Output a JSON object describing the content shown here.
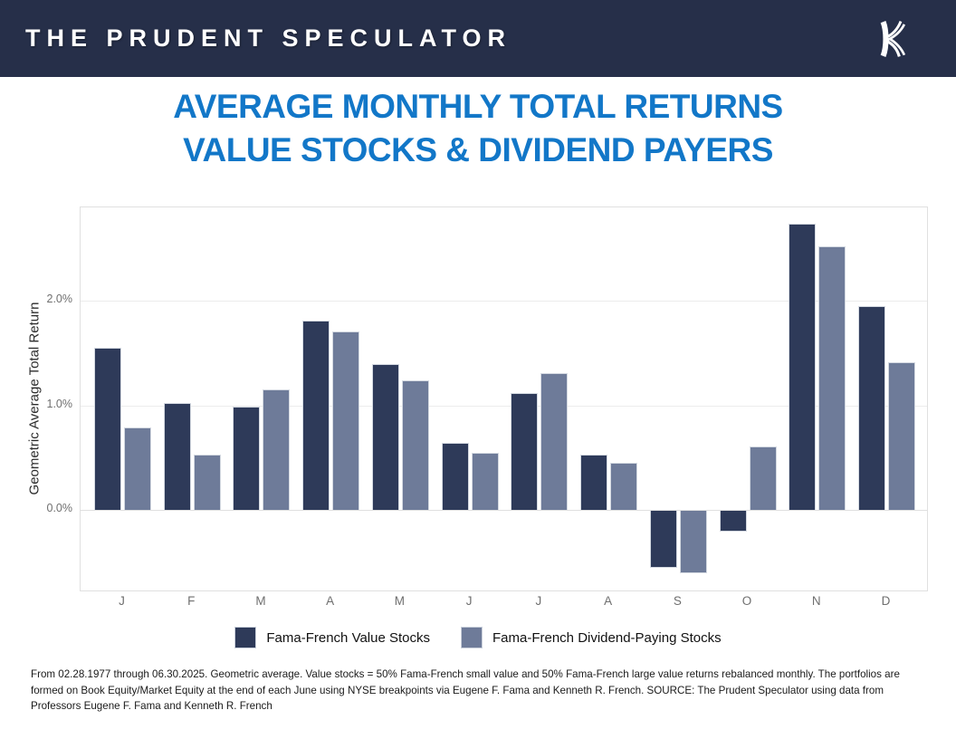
{
  "header": {
    "brand": "THE PRUDENT SPECULATOR",
    "logo_icon": "kovitz-k-logo",
    "background_color": "#262f49"
  },
  "title": {
    "line1": "AVERAGE MONTHLY TOTAL RETURNS",
    "line2": "VALUE STOCKS & DIVIDEND PAYERS",
    "color": "#1277c8"
  },
  "chart_data": {
    "type": "bar",
    "title": "Average Monthly Total Returns - Value Stocks & Dividend Payers",
    "xlabel": "",
    "ylabel": "Geometric Average Total Return",
    "categories": [
      "J",
      "F",
      "M",
      "A",
      "M",
      "J",
      "J",
      "A",
      "S",
      "O",
      "N",
      "D"
    ],
    "series": [
      {
        "name": "Fama-French Value Stocks",
        "color": "#2e3a59",
        "values": [
          1.55,
          1.02,
          0.99,
          1.81,
          1.4,
          0.64,
          1.12,
          0.53,
          -0.55,
          -0.2,
          2.74,
          1.95
        ]
      },
      {
        "name": "Fama-French Dividend-Paying Stocks",
        "color": "#6e7b99",
        "values": [
          0.79,
          0.53,
          1.15,
          1.71,
          1.24,
          0.55,
          1.31,
          0.45,
          -0.6,
          0.61,
          2.52,
          1.41
        ]
      }
    ],
    "yticks": [
      {
        "value": 0,
        "label": "0.0%"
      },
      {
        "value": 1,
        "label": "1.0%"
      },
      {
        "value": 2,
        "label": "2.0%"
      }
    ],
    "ylim": [
      -0.77,
      2.9
    ],
    "grid": true,
    "legend_position": "bottom"
  },
  "footnote": "From 02.28.1977 through 06.30.2025. Geometric average. Value stocks = 50% Fama-French small value and 50% Fama-French large value returns rebalanced monthly. The portfolios are formed on Book Equity/Market Equity at the end of each June using NYSE breakpoints via Eugene F. Fama and Kenneth R. French. SOURCE: The Prudent Speculator using data from Professors Eugene F. Fama and Kenneth R. French"
}
